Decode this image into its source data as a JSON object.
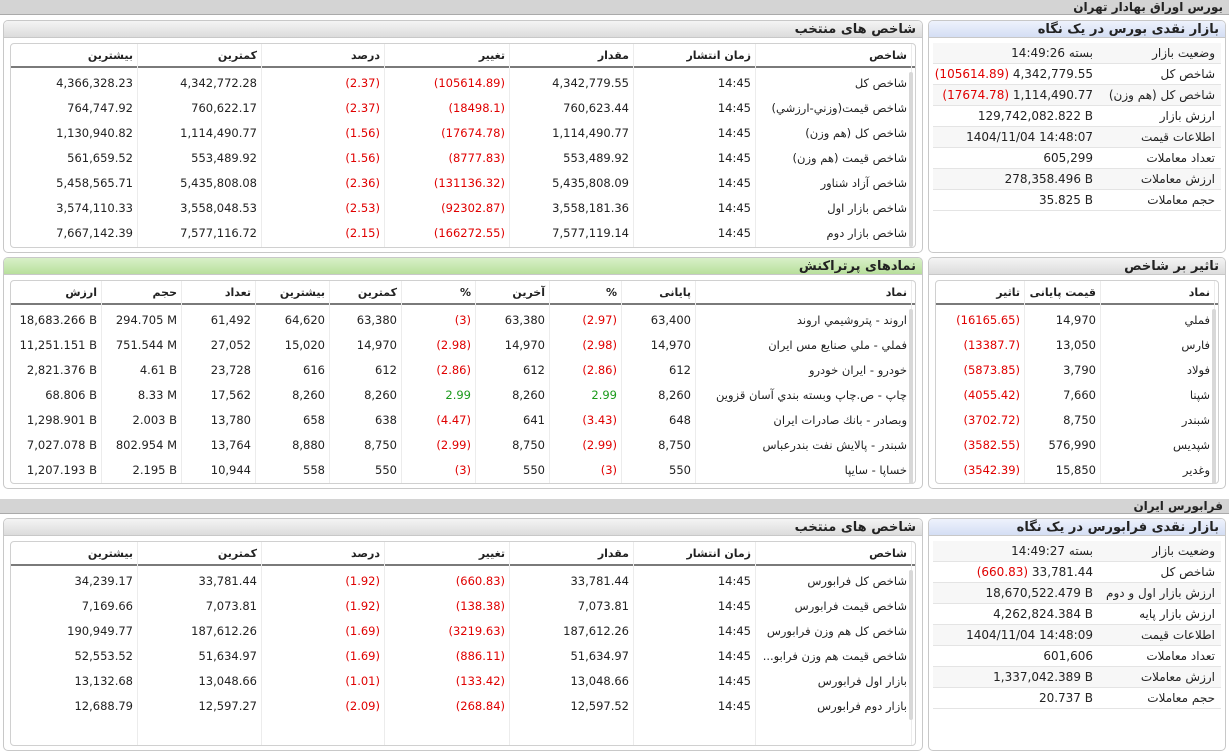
{
  "tse": {
    "section_title": "بورس اوراق بهادار تهران",
    "glance": {
      "title": "بازار نقدی بورس در یک نگاه",
      "rows": [
        {
          "label": "وضعیت بازار",
          "value": "بسته 14:49:26",
          "change": ""
        },
        {
          "label": "شاخص کل",
          "value": "4,342,779.55",
          "change": "(105614.89)"
        },
        {
          "label": "شاخص کل (هم وزن)",
          "value": "1,114,490.77",
          "change": "(17674.78)"
        },
        {
          "label": "ارزش بازار",
          "value": "129,742,082.822 B",
          "change": ""
        },
        {
          "label": "اطلاعات قیمت",
          "value": "1404/11/04 14:48:07",
          "change": ""
        },
        {
          "label": "تعداد معاملات",
          "value": "605,299",
          "change": ""
        },
        {
          "label": "ارزش معاملات",
          "value": "278,358.496 B",
          "change": ""
        },
        {
          "label": "حجم معاملات",
          "value": "35.825 B",
          "change": ""
        }
      ]
    },
    "indices": {
      "title": "شاخص های منتخب",
      "headers": {
        "name": "شاخص",
        "time": "زمان انتشار",
        "value": "مقدار",
        "change": "تغییر",
        "percent": "درصد",
        "min": "کمترین",
        "max": "بیشترین"
      },
      "rows": [
        {
          "name": "شاخص كل",
          "time": "14:45",
          "value": "4,342,779.55",
          "change": "(105614.89)",
          "percent": "(2.37)",
          "min": "4,342,772.28",
          "max": "4,366,328.23"
        },
        {
          "name": "شاخص قيمت(وزني-ارزشي)",
          "time": "14:45",
          "value": "760,623.44",
          "change": "(18498.1)",
          "percent": "(2.37)",
          "min": "760,622.17",
          "max": "764,747.92"
        },
        {
          "name": "شاخص كل (هم وزن)",
          "time": "14:45",
          "value": "1,114,490.77",
          "change": "(17674.78)",
          "percent": "(1.56)",
          "min": "1,114,490.77",
          "max": "1,130,940.82"
        },
        {
          "name": "شاخص قيمت (هم وزن)",
          "time": "14:45",
          "value": "553,489.92",
          "change": "(8777.83)",
          "percent": "(1.56)",
          "min": "553,489.92",
          "max": "561,659.52"
        },
        {
          "name": "شاخص آزاد شناور",
          "time": "14:45",
          "value": "5,435,808.09",
          "change": "(131136.32)",
          "percent": "(2.36)",
          "min": "5,435,808.08",
          "max": "5,458,565.71"
        },
        {
          "name": "شاخص بازار اول",
          "time": "14:45",
          "value": "3,558,181.36",
          "change": "(92302.87)",
          "percent": "(2.53)",
          "min": "3,558,048.53",
          "max": "3,574,110.33"
        },
        {
          "name": "شاخص بازار دوم",
          "time": "14:45",
          "value": "7,577,119.14",
          "change": "(166272.55)",
          "percent": "(2.15)",
          "min": "7,577,116.72",
          "max": "7,667,142.39"
        }
      ]
    },
    "impact": {
      "title": "تاثیر بر شاخص",
      "headers": {
        "symbol": "نماد",
        "close": "قیمت پایانی",
        "impact": "تاثیر"
      },
      "rows": [
        {
          "symbol": "فملي",
          "close": "14,970",
          "impact": "(16165.65)"
        },
        {
          "symbol": "فارس",
          "close": "13,050",
          "impact": "(13387.7)"
        },
        {
          "symbol": "فولاد",
          "close": "3,790",
          "impact": "(5873.85)"
        },
        {
          "symbol": "شپنا",
          "close": "7,660",
          "impact": "(4055.42)"
        },
        {
          "symbol": "شبندر",
          "close": "8,750",
          "impact": "(3702.72)"
        },
        {
          "symbol": "شپديس",
          "close": "576,990",
          "impact": "(3582.55)"
        },
        {
          "symbol": "وغدير",
          "close": "15,850",
          "impact": "(3542.39)"
        }
      ]
    },
    "active": {
      "title": "نمادهای پرتراکنش",
      "headers": {
        "symbol": "نماد",
        "close": "پایانی",
        "close_pct": "%",
        "last": "آخرین",
        "last_pct": "%",
        "min": "کمترین",
        "max": "بیشترین",
        "count": "تعداد",
        "volume": "حجم",
        "value": "ارزش"
      },
      "rows": [
        {
          "symbol": "اروند - پتروشيمي اروند",
          "close": "63,400",
          "close_pct": "(2.97)",
          "last": "63,380",
          "last_pct": "(3)",
          "min": "63,380",
          "max": "64,620",
          "count": "61,492",
          "volume": "294.705 M",
          "value": "18,683.266 B"
        },
        {
          "symbol": "فملي - ملي صنايع مس ايران",
          "close": "14,970",
          "close_pct": "(2.98)",
          "last": "14,970",
          "last_pct": "(2.98)",
          "min": "14,970",
          "max": "15,020",
          "count": "27,052",
          "volume": "751.544 M",
          "value": "11,251.151 B"
        },
        {
          "symbol": "خودرو - ايران خودرو",
          "close": "612",
          "close_pct": "(2.86)",
          "last": "612",
          "last_pct": "(2.86)",
          "min": "612",
          "max": "616",
          "count": "23,728",
          "volume": "4.61 B",
          "value": "2,821.376 B"
        },
        {
          "symbol": "چاپ - ص.چاپ وبسته بندي آسان قزوين",
          "close": "8,260",
          "close_pct": "2.99",
          "last": "8,260",
          "last_pct": "2.99",
          "min": "8,260",
          "max": "8,260",
          "count": "17,562",
          "volume": "8.33 M",
          "value": "68.806 B"
        },
        {
          "symbol": "وبصادر - بانك صادرات ايران",
          "close": "648",
          "close_pct": "(3.43)",
          "last": "641",
          "last_pct": "(4.47)",
          "min": "638",
          "max": "658",
          "count": "13,780",
          "volume": "2.003 B",
          "value": "1,298.901 B"
        },
        {
          "symbol": "شبندر - پالايش نفت بندرعباس",
          "close": "8,750",
          "close_pct": "(2.99)",
          "last": "8,750",
          "last_pct": "(2.99)",
          "min": "8,750",
          "max": "8,880",
          "count": "13,764",
          "volume": "802.954 M",
          "value": "7,027.078 B"
        },
        {
          "symbol": "خساپا - سايپا",
          "close": "550",
          "close_pct": "(3)",
          "last": "550",
          "last_pct": "(3)",
          "min": "550",
          "max": "558",
          "count": "10,944",
          "volume": "2.195 B",
          "value": "1,207.193 B"
        }
      ]
    }
  },
  "ifb": {
    "section_title": "فرابورس ایران",
    "glance": {
      "title": "بازار نقدی فرابورس در یک نگاه",
      "rows": [
        {
          "label": "وضعیت بازار",
          "value": "بسته 14:49:27",
          "change": ""
        },
        {
          "label": "شاخص کل",
          "value": "33,781.44",
          "change": "(660.83)"
        },
        {
          "label": "ارزش بازار اول و دوم",
          "value": "18,670,522.479 B",
          "change": ""
        },
        {
          "label": "ارزش بازار پایه",
          "value": "4,262,824.384 B",
          "change": ""
        },
        {
          "label": "اطلاعات قیمت",
          "value": "1404/11/04 14:48:09",
          "change": ""
        },
        {
          "label": "تعداد معاملات",
          "value": "601,606",
          "change": ""
        },
        {
          "label": "ارزش معاملات",
          "value": "1,337,042.389 B",
          "change": ""
        },
        {
          "label": "حجم معاملات",
          "value": "20.737 B",
          "change": ""
        }
      ]
    },
    "indices": {
      "title": "شاخص های منتخب",
      "headers": {
        "name": "شاخص",
        "time": "زمان انتشار",
        "value": "مقدار",
        "change": "تغییر",
        "percent": "درصد",
        "min": "کمترین",
        "max": "بیشترین"
      },
      "rows": [
        {
          "name": "شاخص كل فرابورس",
          "time": "14:45",
          "value": "33,781.44",
          "change": "(660.83)",
          "percent": "(1.92)",
          "min": "33,781.44",
          "max": "34,239.17"
        },
        {
          "name": "شاخص قيمت فرابورس",
          "time": "14:45",
          "value": "7,073.81",
          "change": "(138.38)",
          "percent": "(1.92)",
          "min": "7,073.81",
          "max": "7,169.66"
        },
        {
          "name": "شاخص كل هم وزن فرابورس",
          "time": "14:45",
          "value": "187,612.26",
          "change": "(3219.63)",
          "percent": "(1.69)",
          "min": "187,612.26",
          "max": "190,949.77"
        },
        {
          "name": "شاخص قيمت هم وزن فرابو...",
          "time": "14:45",
          "value": "51,634.97",
          "change": "(886.11)",
          "percent": "(1.69)",
          "min": "51,634.97",
          "max": "52,553.52"
        },
        {
          "name": "بازار اول فرابورس",
          "time": "14:45",
          "value": "13,048.66",
          "change": "(133.42)",
          "percent": "(1.01)",
          "min": "13,048.66",
          "max": "13,132.68"
        },
        {
          "name": "بازار دوم فرابورس",
          "time": "14:45",
          "value": "12,597.52",
          "change": "(268.84)",
          "percent": "(2.09)",
          "min": "12,597.27",
          "max": "12,688.79"
        }
      ]
    }
  },
  "colors": {
    "negative": "#e00000",
    "positive": "#1a9a1a"
  }
}
